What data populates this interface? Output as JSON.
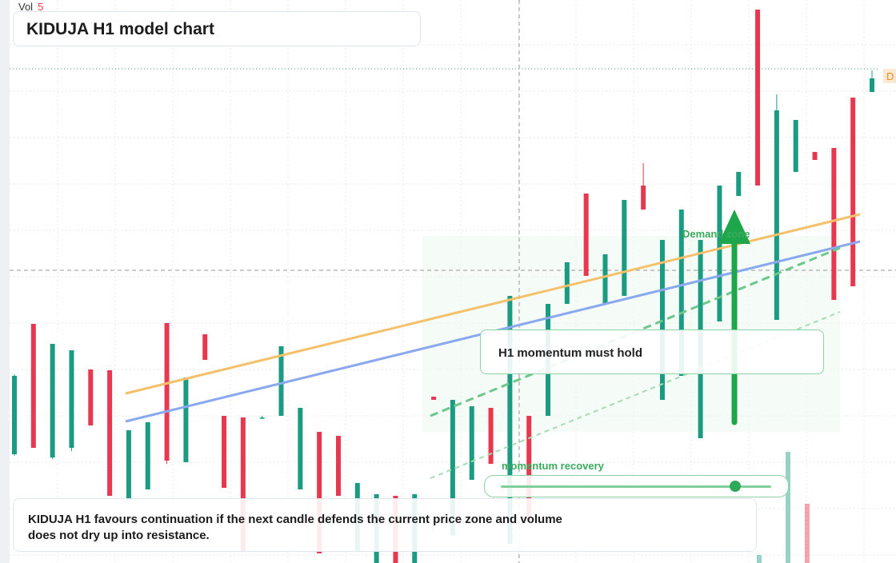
{
  "title": "KIDUJA H1 model chart",
  "vol_label": "Vol",
  "vol_value": "5",
  "price_tag": "D",
  "zone_label": "Demand zone",
  "callout": "H1 momentum must hold",
  "slider_label": "momentum recovery",
  "note": "KIDUJA H1 favours continuation if the next candle defends the current price zone and volume does not dry up into resistance.",
  "chart_data": {
    "type": "candlestick",
    "ylim": [
      0,
      704
    ],
    "up_color": "#1a9b82",
    "down_color": "#e8384f",
    "candles": [
      {
        "open": 136,
        "high": 236,
        "low": 134,
        "close": 234
      },
      {
        "open": 299,
        "high": 299,
        "low": 144,
        "close": 144
      },
      {
        "open": 132,
        "high": 274,
        "low": 130,
        "close": 274
      },
      {
        "open": 144,
        "high": 266,
        "low": 140,
        "close": 266
      },
      {
        "open": 242,
        "high": 242,
        "low": 172,
        "close": 172
      },
      {
        "open": 241,
        "high": 241,
        "low": 84,
        "close": 84
      },
      {
        "open": 79,
        "high": 166,
        "low": 79,
        "close": 166
      },
      {
        "open": 92,
        "high": 176,
        "low": 92,
        "close": 176
      },
      {
        "open": 300,
        "high": 300,
        "low": 124,
        "close": 128
      },
      {
        "open": 126,
        "high": 232,
        "low": 126,
        "close": 232
      },
      {
        "open": 286,
        "high": 286,
        "low": 254,
        "close": 254
      },
      {
        "open": 184,
        "high": 184,
        "low": 94,
        "close": 94
      },
      {
        "open": 182,
        "high": 182,
        "low": 14,
        "close": 14
      },
      {
        "open": 182,
        "high": 184,
        "low": 180,
        "close": 182
      },
      {
        "open": 184,
        "high": 271,
        "low": 184,
        "close": 271
      },
      {
        "open": 92,
        "high": 194,
        "low": 92,
        "close": 194
      },
      {
        "open": 164,
        "high": 164,
        "low": 12,
        "close": 12
      },
      {
        "open": 159,
        "high": 159,
        "low": 84,
        "close": 84
      },
      {
        "open": 14,
        "high": 100,
        "low": 14,
        "close": 100
      },
      {
        "open": 0,
        "high": 86,
        "low": 0,
        "close": 86
      },
      {
        "open": 84,
        "high": 84,
        "low": 0,
        "close": 0
      },
      {
        "open": 0,
        "high": 86,
        "low": 0,
        "close": 86
      },
      {
        "open": 208,
        "high": 208,
        "low": 204,
        "close": 204
      },
      {
        "open": 34,
        "high": 204,
        "low": 34,
        "close": 204
      },
      {
        "open": 104,
        "high": 196,
        "low": 104,
        "close": 196
      },
      {
        "open": 194,
        "high": 194,
        "low": 124,
        "close": 124
      },
      {
        "open": 24,
        "high": 334,
        "low": 24,
        "close": 334
      },
      {
        "open": 184,
        "high": 184,
        "low": 54,
        "close": 54
      },
      {
        "open": 184,
        "high": 324,
        "low": 184,
        "close": 324
      },
      {
        "open": 324,
        "high": 376,
        "low": 324,
        "close": 376
      },
      {
        "open": 462,
        "high": 462,
        "low": 359,
        "close": 359
      },
      {
        "open": 324,
        "high": 386,
        "low": 324,
        "close": 386
      },
      {
        "open": 334,
        "high": 454,
        "low": 334,
        "close": 454
      },
      {
        "open": 472,
        "high": 500,
        "low": 442,
        "close": 442
      },
      {
        "open": 204,
        "high": 404,
        "low": 204,
        "close": 404
      },
      {
        "open": 234,
        "high": 442,
        "low": 234,
        "close": 442
      },
      {
        "open": 156,
        "high": 404,
        "low": 156,
        "close": 404
      },
      {
        "open": 302,
        "high": 472,
        "low": 302,
        "close": 472
      },
      {
        "open": 459,
        "high": 489,
        "low": 459,
        "close": 489
      },
      {
        "open": 692,
        "high": 692,
        "low": 472,
        "close": 472
      },
      {
        "open": 304,
        "high": 586,
        "low": 304,
        "close": 566
      },
      {
        "open": 489,
        "high": 554,
        "low": 489,
        "close": 554
      },
      {
        "open": 514,
        "high": 514,
        "low": 504,
        "close": 504
      },
      {
        "open": 519,
        "high": 519,
        "low": 329,
        "close": 329
      },
      {
        "open": 582,
        "high": 582,
        "low": 346,
        "close": 346
      },
      {
        "open": 589,
        "high": 616,
        "low": 589,
        "close": 606
      }
    ]
  }
}
